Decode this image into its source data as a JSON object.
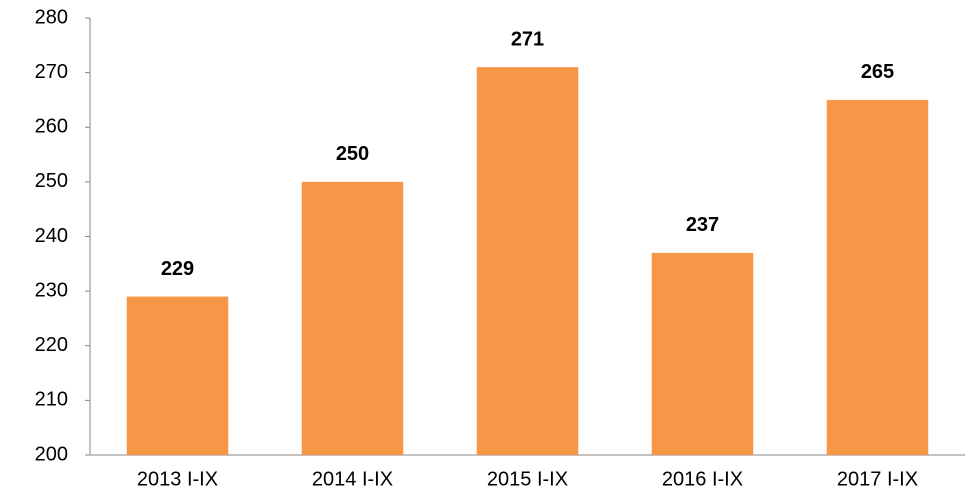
{
  "chart_data": {
    "type": "bar",
    "categories": [
      "2013 I-IX",
      "2014 I-IX",
      "2015 I-IX",
      "2016 I-IX",
      "2017 I-IX"
    ],
    "values": [
      229,
      250,
      271,
      237,
      265
    ],
    "color": "#f79646",
    "ylim": [
      200,
      280
    ],
    "yticks": [
      200,
      210,
      220,
      230,
      240,
      250,
      260,
      270,
      280
    ],
    "grid": false,
    "data_labels": true
  }
}
